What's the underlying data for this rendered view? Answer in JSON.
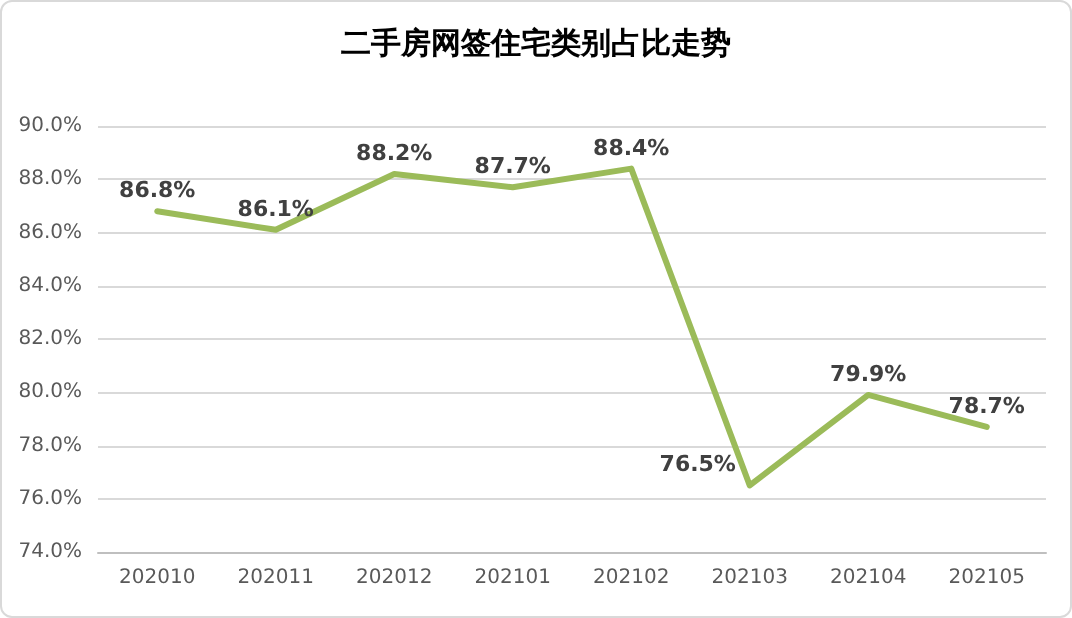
{
  "chart_data": {
    "type": "line",
    "title": "二手房网签住宅类别占比走势",
    "categories": [
      "202010",
      "202011",
      "202012",
      "202101",
      "202102",
      "202103",
      "202104",
      "202105"
    ],
    "values": [
      86.8,
      86.1,
      88.2,
      87.7,
      88.4,
      76.5,
      79.9,
      78.7
    ],
    "value_labels": [
      "86.8%",
      "86.1%",
      "88.2%",
      "87.7%",
      "88.4%",
      "76.5%",
      "79.9%",
      "78.7%"
    ],
    "color": "#9bbb59",
    "ylim": [
      74,
      90
    ],
    "yticks": [
      {
        "value": 74,
        "label": "74.0%"
      },
      {
        "value": 76,
        "label": "76.0%"
      },
      {
        "value": 78,
        "label": "78.0%"
      },
      {
        "value": 80,
        "label": "80.0%"
      },
      {
        "value": 82,
        "label": "82.0%"
      },
      {
        "value": 84,
        "label": "84.0%"
      },
      {
        "value": 86,
        "label": "86.0%"
      },
      {
        "value": 88,
        "label": "88.0%"
      },
      {
        "value": 90,
        "label": "90.0%"
      }
    ],
    "grid": "y",
    "marker": "none",
    "line_style": "solid"
  }
}
